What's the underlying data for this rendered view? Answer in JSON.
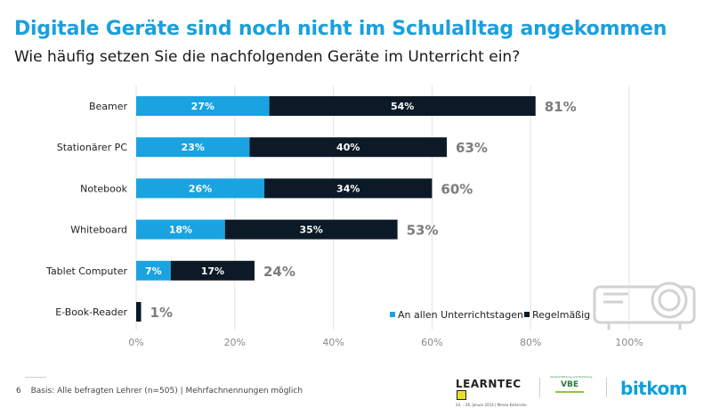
{
  "header": {
    "title": "Digitale Geräte sind noch nicht im Schulalltag angekommen",
    "subtitle": "Wie häufig setzen Sie die nachfolgenden Geräte im Unterricht ein?"
  },
  "chart_data": {
    "type": "bar",
    "orientation": "horizontal",
    "stacked": true,
    "title": "Digitale Geräte sind noch nicht im Schulalltag angekommen",
    "subtitle": "Wie häufig setzen Sie die nachfolgenden Geräte im Unterricht ein?",
    "categories": [
      "Beamer",
      "Stationärer PC",
      "Notebook",
      "Whiteboard",
      "Tablet Computer",
      "E-Book-Reader"
    ],
    "series": [
      {
        "name": "An allen Unterrichtstagen",
        "color": "#19a3e0",
        "values": [
          27,
          23,
          26,
          18,
          7,
          null
        ],
        "labels": [
          "27%",
          "23%",
          "26%",
          "18%",
          "7%",
          ""
        ]
      },
      {
        "name": "Regelmäßig",
        "color": "#0b1a26",
        "values": [
          54,
          40,
          34,
          35,
          17,
          1
        ],
        "labels": [
          "54%",
          "40%",
          "34%",
          "35%",
          "17%",
          ""
        ]
      }
    ],
    "totals": [
      81,
      63,
      60,
      53,
      24,
      1
    ],
    "total_labels": [
      "81%",
      "63%",
      "60%",
      "53%",
      "24%",
      "1%"
    ],
    "xlim": [
      0,
      100
    ],
    "xticks": [
      0,
      20,
      40,
      60,
      80,
      100
    ],
    "xtick_labels": [
      "0%",
      "20%",
      "40%",
      "60%",
      "80%",
      "100%"
    ],
    "grid": true,
    "legend": {
      "position": "bottom-right",
      "entries": [
        "An allen Unterrichtstagen",
        "Regelmäßig"
      ]
    }
  },
  "footer": {
    "page": "6",
    "note": "Basis: Alle befragten Lehrer (n=505) | Mehrfachnennungen möglich"
  },
  "logos": {
    "learntec": {
      "word": "LEARNTEC",
      "tagline": "24. – 26. Januar 2014 | Messe Karlsruhe"
    },
    "vbe": {
      "word": "VBE",
      "tagline": "Verband Bildung und Erziehung"
    },
    "bitkom": {
      "word": "bitkom"
    }
  },
  "colors": {
    "accent": "#19a3e0",
    "dark": "#0b1a26",
    "total": "#7d7d7d",
    "grid": "#e3e3e3"
  }
}
